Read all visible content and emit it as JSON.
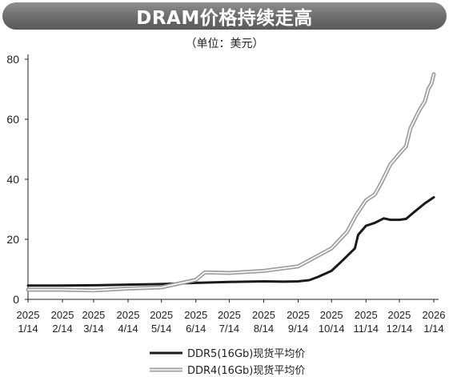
{
  "chart_data": {
    "type": "line",
    "title": "DRAM价格持续走高",
    "subtitle": "（单位：美元）",
    "ylim": [
      0,
      80
    ],
    "yticks": [
      0,
      20,
      40,
      60,
      80
    ],
    "xlim": [
      "2025-01-14",
      "2026-01-14"
    ],
    "xticks": [
      {
        "date": "2025-01-14",
        "year": "2025",
        "md": "1/14"
      },
      {
        "date": "2025-02-14",
        "year": "2025",
        "md": "2/14"
      },
      {
        "date": "2025-03-14",
        "year": "2025",
        "md": "3/14"
      },
      {
        "date": "2025-04-14",
        "year": "2025",
        "md": "4/14"
      },
      {
        "date": "2025-05-14",
        "year": "2025",
        "md": "5/14"
      },
      {
        "date": "2025-06-14",
        "year": "2025",
        "md": "6/14"
      },
      {
        "date": "2025-07-14",
        "year": "2025",
        "md": "7/14"
      },
      {
        "date": "2025-08-14",
        "year": "2025",
        "md": "8/14"
      },
      {
        "date": "2025-09-14",
        "year": "2025",
        "md": "9/14"
      },
      {
        "date": "2025-10-14",
        "year": "2025",
        "md": "10/14"
      },
      {
        "date": "2025-11-14",
        "year": "2025",
        "md": "11/14"
      },
      {
        "date": "2025-12-14",
        "year": "2025",
        "md": "12/14"
      },
      {
        "date": "2026-01-14",
        "year": "2026",
        "md": "1/14"
      }
    ],
    "grid": false,
    "legend_position": "bottom-right",
    "series": [
      {
        "name": "DDR5(16Gb)现货平均价",
        "color": "#1a1a1a",
        "style": "solid",
        "points": [
          [
            "2025-01-14",
            4.6
          ],
          [
            "2025-02-14",
            4.6
          ],
          [
            "2025-03-14",
            4.7
          ],
          [
            "2025-04-14",
            4.9
          ],
          [
            "2025-05-14",
            5.1
          ],
          [
            "2025-06-14",
            5.5
          ],
          [
            "2025-07-14",
            5.8
          ],
          [
            "2025-08-14",
            6.0
          ],
          [
            "2025-09-01",
            5.9
          ],
          [
            "2025-09-14",
            6.0
          ],
          [
            "2025-09-24",
            6.4
          ],
          [
            "2025-10-02",
            7.5
          ],
          [
            "2025-10-14",
            9.5
          ],
          [
            "2025-10-24",
            13.0
          ],
          [
            "2025-11-04",
            17.0
          ],
          [
            "2025-11-07",
            21.5
          ],
          [
            "2025-11-14",
            24.5
          ],
          [
            "2025-11-22",
            25.5
          ],
          [
            "2025-11-30",
            27.0
          ],
          [
            "2025-12-06",
            26.5
          ],
          [
            "2025-12-14",
            26.5
          ],
          [
            "2025-12-20",
            26.8
          ],
          [
            "2025-12-27",
            29.0
          ],
          [
            "2026-01-06",
            32.0
          ],
          [
            "2026-01-14",
            34.0
          ]
        ]
      },
      {
        "name": "DDR4(16Gb)现货平均价",
        "color": "#9e9e9e",
        "style": "double",
        "points": [
          [
            "2025-01-14",
            3.2
          ],
          [
            "2025-02-14",
            3.2
          ],
          [
            "2025-03-14",
            3.0
          ],
          [
            "2025-04-14",
            3.6
          ],
          [
            "2025-05-14",
            4.0
          ],
          [
            "2025-06-14",
            6.5
          ],
          [
            "2025-06-22",
            9.0
          ],
          [
            "2025-07-14",
            8.8
          ],
          [
            "2025-08-14",
            9.5
          ],
          [
            "2025-09-14",
            11.0
          ],
          [
            "2025-10-14",
            17.0
          ],
          [
            "2025-10-28",
            22.5
          ],
          [
            "2025-11-05",
            28.0
          ],
          [
            "2025-11-14",
            33.0
          ],
          [
            "2025-11-22",
            35.0
          ],
          [
            "2025-11-28",
            39.0
          ],
          [
            "2025-12-06",
            45.0
          ],
          [
            "2025-12-14",
            48.5
          ],
          [
            "2025-12-20",
            51.0
          ],
          [
            "2025-12-24",
            57.0
          ],
          [
            "2026-01-01",
            63.0
          ],
          [
            "2026-01-06",
            66.0
          ],
          [
            "2026-01-09",
            70.0
          ],
          [
            "2026-01-12",
            72.0
          ],
          [
            "2026-01-14",
            75.0
          ]
        ]
      }
    ]
  }
}
